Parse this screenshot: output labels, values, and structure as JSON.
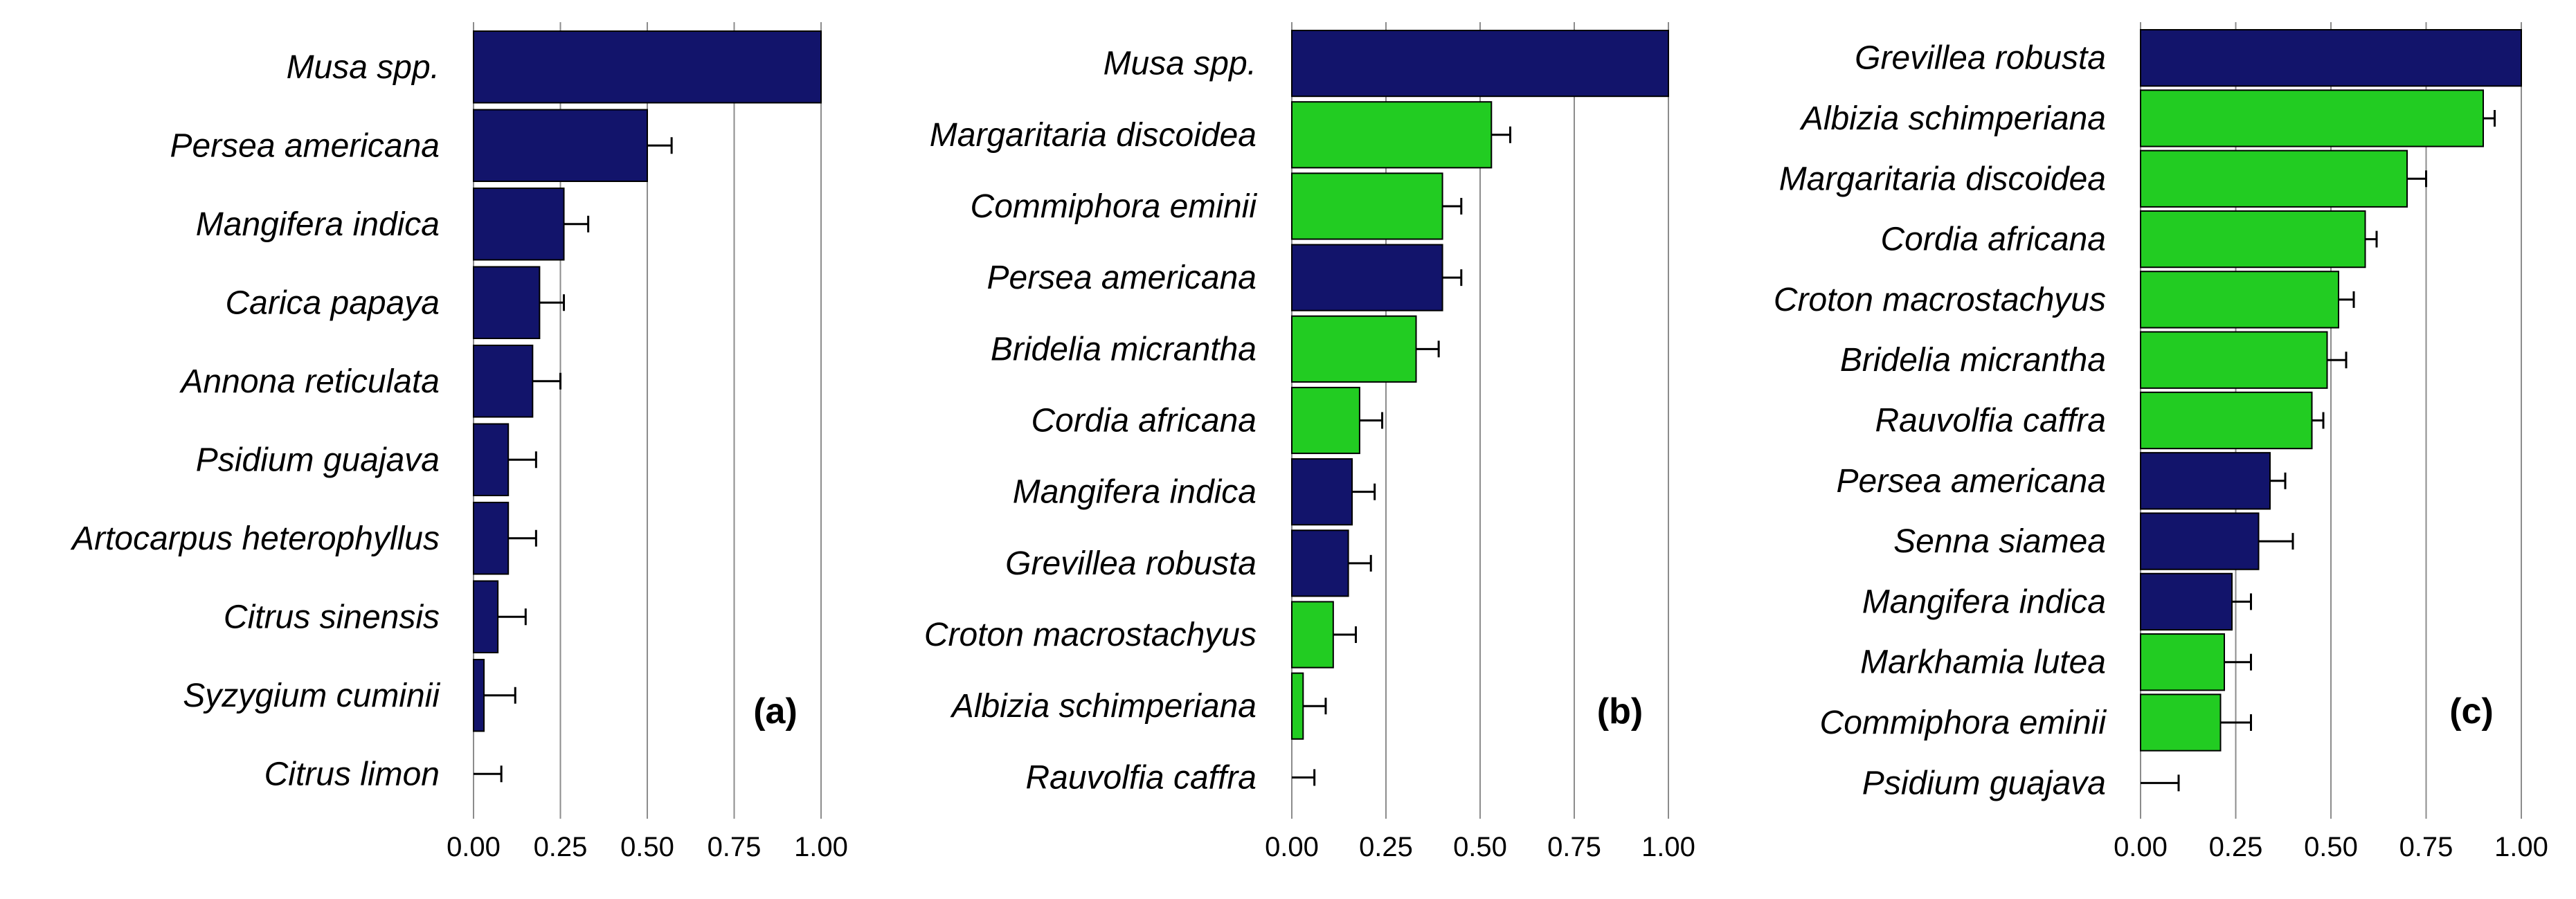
{
  "colors": {
    "native": "#22CC22",
    "exotic": "#12146B"
  },
  "chart_data": [
    {
      "type": "bar",
      "orientation": "horizontal",
      "panel_label": "(a)",
      "xlim": [
        0,
        1
      ],
      "xticks": [
        "0.00",
        "0.25",
        "0.50",
        "0.75",
        "1.00"
      ],
      "categories": [
        "Musa spp.",
        "Persea americana",
        "Mangifera indica",
        "Carica papaya",
        "Annona reticulata",
        "Psidium guajava",
        "Artocarpus heterophyllus",
        "Citrus sinensis",
        "Syzygium cuminii",
        "Citrus limon"
      ],
      "values": [
        1.0,
        0.5,
        0.26,
        0.19,
        0.17,
        0.1,
        0.1,
        0.07,
        0.03,
        0.0
      ],
      "errors": [
        0.0,
        0.07,
        0.07,
        0.07,
        0.08,
        0.08,
        0.08,
        0.08,
        0.09,
        0.08
      ],
      "groups": [
        "exotic",
        "exotic",
        "exotic",
        "exotic",
        "exotic",
        "exotic",
        "exotic",
        "exotic",
        "exotic",
        "exotic"
      ]
    },
    {
      "type": "bar",
      "orientation": "horizontal",
      "panel_label": "(b)",
      "xlim": [
        0,
        1
      ],
      "xticks": [
        "0.00",
        "0.25",
        "0.50",
        "0.75",
        "1.00"
      ],
      "categories": [
        "Musa spp.",
        "Margaritaria discoidea",
        "Commiphora eminii",
        "Persea americana",
        "Bridelia micrantha",
        "Cordia africana",
        "Mangifera indica",
        "Grevillea robusta",
        "Croton macrostachyus",
        "Albizia schimperiana",
        "Rauvolfia caffra"
      ],
      "values": [
        1.0,
        0.53,
        0.4,
        0.4,
        0.33,
        0.18,
        0.16,
        0.15,
        0.11,
        0.03,
        0.0
      ],
      "errors": [
        0.0,
        0.05,
        0.05,
        0.05,
        0.06,
        0.06,
        0.06,
        0.06,
        0.06,
        0.06,
        0.06
      ],
      "groups": [
        "exotic",
        "native",
        "native",
        "exotic",
        "native",
        "native",
        "exotic",
        "exotic",
        "native",
        "native",
        "native"
      ]
    },
    {
      "type": "bar",
      "orientation": "horizontal",
      "panel_label": "(c)",
      "xlim": [
        0,
        1
      ],
      "xticks": [
        "0.00",
        "0.25",
        "0.50",
        "0.75",
        "1.00"
      ],
      "categories": [
        "Grevillea robusta",
        "Albizia schimperiana",
        "Margaritaria discoidea",
        "Cordia africana",
        "Croton macrostachyus",
        "Bridelia micrantha",
        "Rauvolfia caffra",
        "Persea americana",
        "Senna siamea",
        "Mangifera indica",
        "Markhamia lutea",
        "Commiphora eminii",
        "Psidium guajava"
      ],
      "values": [
        1.0,
        0.9,
        0.7,
        0.59,
        0.52,
        0.49,
        0.45,
        0.34,
        0.31,
        0.24,
        0.22,
        0.21,
        0.0
      ],
      "errors": [
        0.0,
        0.03,
        0.05,
        0.03,
        0.04,
        0.05,
        0.03,
        0.04,
        0.09,
        0.05,
        0.07,
        0.08,
        0.1
      ],
      "groups": [
        "exotic",
        "native",
        "native",
        "native",
        "native",
        "native",
        "native",
        "exotic",
        "exotic",
        "exotic",
        "native",
        "native",
        "exotic"
      ]
    }
  ]
}
